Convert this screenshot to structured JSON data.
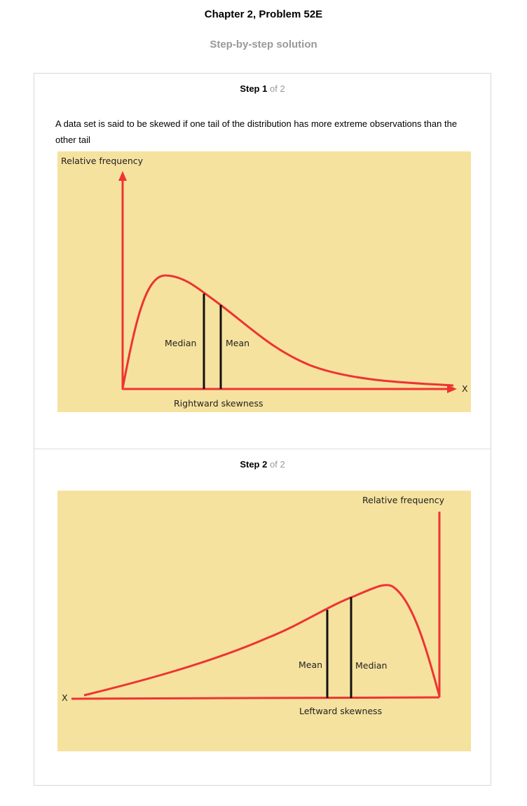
{
  "header": {
    "title": "Chapter 2, Problem 52E",
    "subtitle": "Step-by-step solution"
  },
  "steps": [
    {
      "label": "Step",
      "number": "1",
      "of_text": "of 2",
      "text": "A data set is said to be skewed if one tail of the distribution has more extreme observations than the other tail",
      "figure": {
        "y_axis_label": "Relative frequency",
        "x_axis_label": "X",
        "median_label": "Median",
        "mean_label": "Mean",
        "caption": "Rightward skewness"
      }
    },
    {
      "label": "Step",
      "number": "2",
      "of_text": "of 2",
      "figure": {
        "y_axis_label": "Relative frequency",
        "x_axis_label": "X",
        "mean_label": "Mean",
        "median_label": "Median",
        "caption": "Leftward skewness"
      }
    }
  ],
  "colors": {
    "figure_background": "#f5e29e",
    "curve_red": "#ee3333",
    "line_black": "#111111",
    "muted_text": "#999999"
  }
}
